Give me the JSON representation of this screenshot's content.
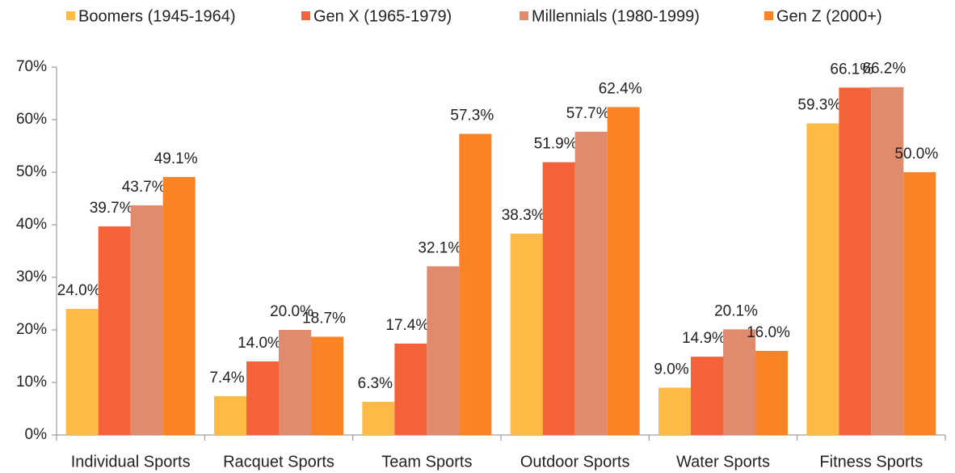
{
  "chart_data": {
    "type": "bar",
    "categories": [
      "Individual Sports",
      "Racquet Sports",
      "Team Sports",
      "Outdoor Sports",
      "Water Sports",
      "Fitness Sports"
    ],
    "series": [
      {
        "name": "Boomers (1945-1964)",
        "color": "#fdba45",
        "values": [
          24.0,
          7.4,
          6.3,
          38.3,
          9.0,
          59.3
        ],
        "value_labels": [
          "24.0%",
          "7.4%",
          "6.3%",
          "38.3%",
          "9.0%",
          "59.3%"
        ]
      },
      {
        "name": "Gen X (1965-1979)",
        "color": "#f4623a",
        "values": [
          39.7,
          14.0,
          17.4,
          51.9,
          14.9,
          66.1
        ],
        "value_labels": [
          "39.7%",
          "14.0%",
          "17.4%",
          "51.9%",
          "14.9%",
          "66.1%"
        ]
      },
      {
        "name": "Millennials (1980-1999)",
        "color": "#e08a6e",
        "values": [
          43.7,
          20.0,
          32.1,
          57.7,
          20.1,
          66.2
        ],
        "value_labels": [
          "43.7%",
          "20.0%",
          "32.1%",
          "57.7%",
          "20.1%",
          "66.2%"
        ]
      },
      {
        "name": "Gen Z (2000+)",
        "color": "#f98325",
        "values": [
          49.1,
          18.7,
          57.3,
          62.4,
          16.0,
          50.0
        ],
        "value_labels": [
          "49.1%",
          "18.7%",
          "57.3%",
          "62.4%",
          "16.0%",
          "50.0%"
        ]
      }
    ],
    "ylim": [
      0,
      70
    ],
    "yticks": [
      {
        "value": 0,
        "label": "0%"
      },
      {
        "value": 10,
        "label": "10%"
      },
      {
        "value": 20,
        "label": "20%"
      },
      {
        "value": 30,
        "label": "30%"
      },
      {
        "value": 40,
        "label": "40%"
      },
      {
        "value": 50,
        "label": "50%"
      },
      {
        "value": 60,
        "label": "60%"
      },
      {
        "value": 70,
        "label": "70%"
      }
    ],
    "legend": "top"
  }
}
